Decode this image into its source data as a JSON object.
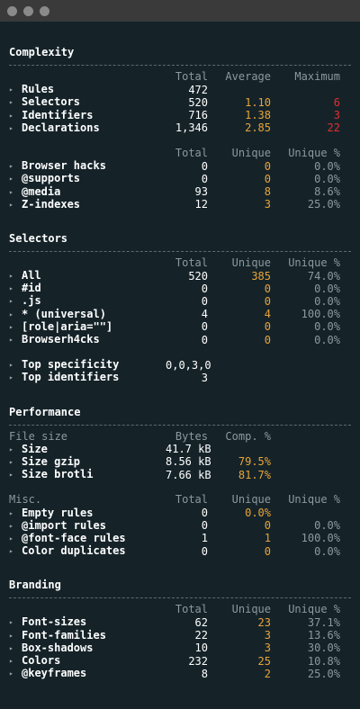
{
  "window": {
    "controls": [
      "close-dot",
      "minimize-dot",
      "zoom-dot"
    ]
  },
  "complexity": {
    "title": "Complexity",
    "header1": {
      "col1": "Total",
      "col2": "Average",
      "col3": "Maximum"
    },
    "rows1": [
      {
        "label": "Rules",
        "total": "472",
        "avg": "",
        "max": ""
      },
      {
        "label": "Selectors",
        "total": "520",
        "avg": "1.10",
        "max": "6"
      },
      {
        "label": "Identifiers",
        "total": "716",
        "avg": "1.38",
        "max": "3"
      },
      {
        "label": "Declarations",
        "total": "1,346",
        "avg": "2.85",
        "max": "22"
      }
    ],
    "header2": {
      "col1": "Total",
      "col2": "Unique",
      "col3": "Unique %"
    },
    "rows2": [
      {
        "label": "Browser hacks",
        "total": "0",
        "unique": "0",
        "pct": "0.0%"
      },
      {
        "label": "@supports",
        "total": "0",
        "unique": "0",
        "pct": "0.0%"
      },
      {
        "label": "@media",
        "total": "93",
        "unique": "8",
        "pct": "8.6%"
      },
      {
        "label": "Z-indexes",
        "total": "12",
        "unique": "3",
        "pct": "25.0%"
      }
    ]
  },
  "selectors": {
    "title": "Selectors",
    "header": {
      "col1": "Total",
      "col2": "Unique",
      "col3": "Unique %"
    },
    "rows": [
      {
        "label": "All",
        "total": "520",
        "unique": "385",
        "pct": "74.0%"
      },
      {
        "label": "#id",
        "total": "0",
        "unique": "0",
        "pct": "0.0%"
      },
      {
        "label": ".js",
        "total": "0",
        "unique": "0",
        "pct": "0.0%"
      },
      {
        "label": "* (universal)",
        "total": "4",
        "unique": "4",
        "pct": "100.0%"
      },
      {
        "label": "[role|aria=\"\"]",
        "total": "0",
        "unique": "0",
        "pct": "0.0%"
      },
      {
        "label": "Browserh4cks",
        "total": "0",
        "unique": "0",
        "pct": "0.0%"
      }
    ],
    "extra": [
      {
        "label": "Top specificity",
        "value": "0,0,3,0"
      },
      {
        "label": "Top identifiers",
        "value": "3"
      }
    ]
  },
  "performance": {
    "title": "Performance",
    "header1": {
      "label": "File size",
      "col1": "Bytes",
      "col2": "Comp. %"
    },
    "rows1": [
      {
        "label": "Size",
        "bytes": "41.7 kB",
        "comp": ""
      },
      {
        "label": "Size gzip",
        "bytes": "8.56 kB",
        "comp": "79.5%"
      },
      {
        "label": "Size brotli",
        "bytes": "7.66 kB",
        "comp": "81.7%"
      }
    ],
    "header2": {
      "label": "Misc.",
      "col1": "Total",
      "col2": "Unique",
      "col3": "Unique %"
    },
    "rows2": [
      {
        "label": "Empty rules",
        "total": "0",
        "unique": "0.0%",
        "pct": ""
      },
      {
        "label": "@import rules",
        "total": "0",
        "unique": "0",
        "pct": "0.0%"
      },
      {
        "label": "@font-face rules",
        "total": "1",
        "unique": "1",
        "pct": "100.0%"
      },
      {
        "label": "Color duplicates",
        "total": "0",
        "unique": "0",
        "pct": "0.0%"
      }
    ]
  },
  "branding": {
    "title": "Branding",
    "header": {
      "col1": "Total",
      "col2": "Unique",
      "col3": "Unique %"
    },
    "rows": [
      {
        "label": "Font-sizes",
        "total": "62",
        "unique": "23",
        "pct": "37.1%"
      },
      {
        "label": "Font-families",
        "total": "22",
        "unique": "3",
        "pct": "13.6%"
      },
      {
        "label": "Box-shadows",
        "total": "10",
        "unique": "3",
        "pct": "30.0%"
      },
      {
        "label": "Colors",
        "total": "232",
        "unique": "25",
        "pct": "10.8%"
      },
      {
        "label": "@keyframes",
        "total": "8",
        "unique": "2",
        "pct": "25.0%"
      }
    ]
  },
  "colors": {
    "background": "#152329",
    "accent": "#e8a43a",
    "alert": "#e02f2f"
  }
}
